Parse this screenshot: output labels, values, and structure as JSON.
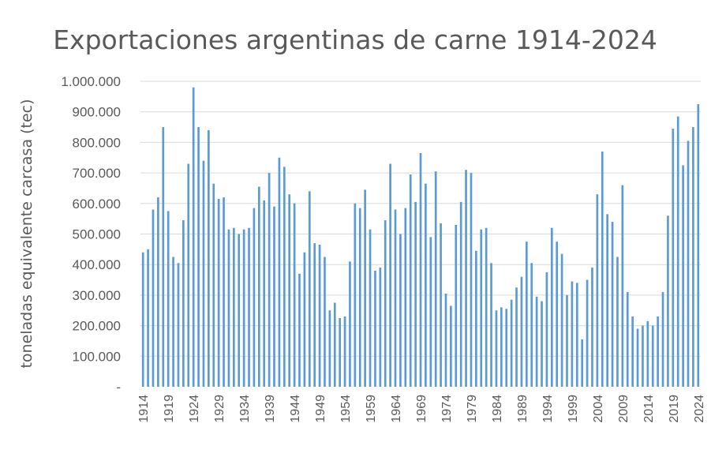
{
  "chart_data": {
    "type": "bar",
    "title": "Exportaciones argentinas de carne 1914-2024",
    "ylabel": "toneladas equivalente carcasa (tec)",
    "xlabel": "",
    "ylim": [
      0,
      1000000
    ],
    "grid": true,
    "legend": "none",
    "color": "#5b9bd5",
    "y_tick_values": [
      0,
      100000,
      200000,
      300000,
      400000,
      500000,
      600000,
      700000,
      800000,
      900000,
      1000000
    ],
    "y_tick_labels": [
      "-",
      "100.000",
      "200.000",
      "300.000",
      "400.000",
      "500.000",
      "600.000",
      "700.000",
      "800.000",
      "900.000",
      "1.000.000"
    ],
    "x_tick_labels": [
      "1914",
      "1919",
      "1924",
      "1929",
      "1934",
      "1939",
      "1944",
      "1949",
      "1954",
      "1959",
      "1964",
      "1969",
      "1974",
      "1979",
      "1984",
      "1989",
      "1994",
      "1999",
      "2004",
      "2009",
      "2014",
      "2019",
      "2024"
    ],
    "categories": [
      1914,
      1915,
      1916,
      1917,
      1918,
      1919,
      1920,
      1921,
      1922,
      1923,
      1924,
      1925,
      1926,
      1927,
      1928,
      1929,
      1930,
      1931,
      1932,
      1933,
      1934,
      1935,
      1936,
      1937,
      1938,
      1939,
      1940,
      1941,
      1942,
      1943,
      1944,
      1945,
      1946,
      1947,
      1948,
      1949,
      1950,
      1951,
      1952,
      1953,
      1954,
      1955,
      1956,
      1957,
      1958,
      1959,
      1960,
      1961,
      1962,
      1963,
      1964,
      1965,
      1966,
      1967,
      1968,
      1969,
      1970,
      1971,
      1972,
      1973,
      1974,
      1975,
      1976,
      1977,
      1978,
      1979,
      1980,
      1981,
      1982,
      1983,
      1984,
      1985,
      1986,
      1987,
      1988,
      1989,
      1990,
      1991,
      1992,
      1993,
      1994,
      1995,
      1996,
      1997,
      1998,
      1999,
      2000,
      2001,
      2002,
      2003,
      2004,
      2005,
      2006,
      2007,
      2008,
      2009,
      2010,
      2011,
      2012,
      2013,
      2014,
      2015,
      2016,
      2017,
      2018,
      2019,
      2020,
      2021,
      2022,
      2023,
      2024
    ],
    "values": [
      440000,
      450000,
      580000,
      620000,
      850000,
      575000,
      425000,
      405000,
      545000,
      730000,
      980000,
      850000,
      740000,
      840000,
      665000,
      615000,
      620000,
      515000,
      520000,
      500000,
      515000,
      520000,
      585000,
      655000,
      610000,
      700000,
      590000,
      750000,
      720000,
      630000,
      600000,
      370000,
      440000,
      640000,
      470000,
      465000,
      425000,
      250000,
      275000,
      225000,
      230000,
      410000,
      600000,
      585000,
      645000,
      515000,
      380000,
      390000,
      545000,
      730000,
      580000,
      500000,
      585000,
      695000,
      605000,
      765000,
      665000,
      490000,
      705000,
      535000,
      305000,
      265000,
      530000,
      605000,
      710000,
      700000,
      445000,
      515000,
      520000,
      405000,
      250000,
      260000,
      255000,
      285000,
      325000,
      360000,
      475000,
      405000,
      295000,
      280000,
      375000,
      520000,
      475000,
      435000,
      300000,
      345000,
      340000,
      155000,
      350000,
      390000,
      630000,
      770000,
      565000,
      540000,
      425000,
      660000,
      310000,
      230000,
      190000,
      200000,
      215000,
      200000,
      230000,
      310000,
      560000,
      845000,
      885000,
      725000,
      805000,
      850000,
      925000
    ]
  }
}
